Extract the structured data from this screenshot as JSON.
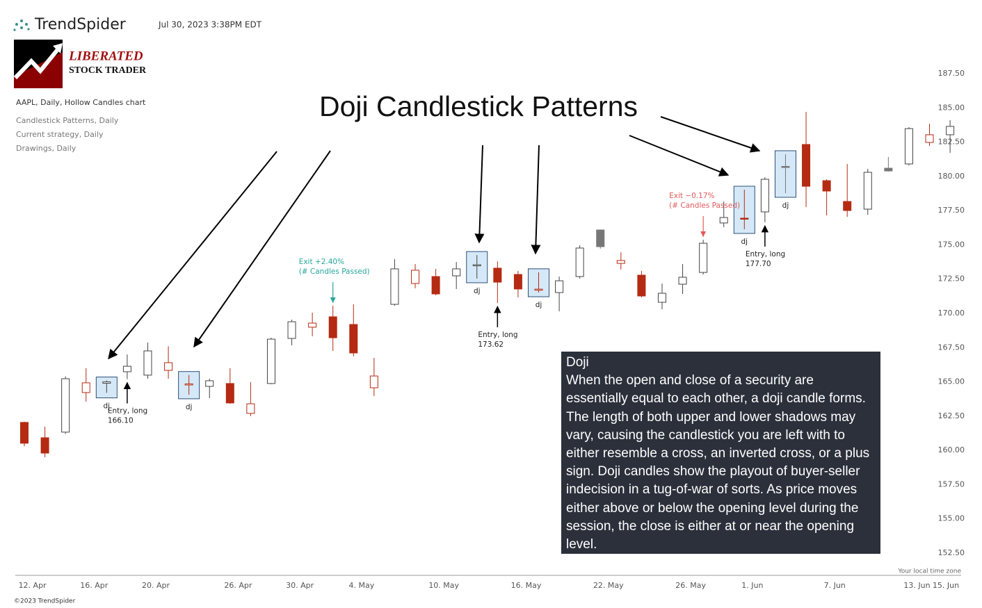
{
  "header": {
    "brand": "TrendSpider",
    "timestamp": "Jul 30, 2023 3:38PM EDT",
    "logo_line1": "LIBERATED",
    "logo_line2": "STOCK TRADER"
  },
  "legend": [
    "AAPL, Daily, Hollow Candles chart",
    "Candlestick Patterns, Daily",
    "Current strategy, Daily",
    "Drawings, Daily"
  ],
  "footer": {
    "copyright": "©2023 TrendSpider",
    "timezone": "Your local time zone"
  },
  "info_box": {
    "title": "Doji",
    "text": "When the open and close of a security are essentially equal to each other, a doji candle forms. The length of both upper and lower shadows may vary, causing the candlestick you are left with to either resemble a cross, an inverted cross, or a plus sign. Doji candles show the playout of buyer-seller indecision in a tug-of-war of sorts. As price moves either above or below the opening level during the session, the close is either at or near the opening level."
  },
  "chart_data": {
    "type": "candlestick",
    "title": "Doji Candlestick Patterns",
    "categories": [
      null,
      "12. Apr",
      null,
      null,
      "16. Apr",
      null,
      null,
      "20. Apr",
      null,
      null,
      null,
      "26. Apr",
      null,
      null,
      "30. Apr",
      null,
      null,
      "4. May",
      null,
      null,
      null,
      "10. May",
      null,
      null,
      null,
      "16. May",
      null,
      null,
      null,
      "22. May",
      null,
      null,
      null,
      "26. May",
      null,
      null,
      "1. Jun",
      null,
      null,
      null,
      "7. Jun",
      null,
      null,
      null,
      "13. Jun",
      null,
      "15. Jun"
    ],
    "open": [
      162.04,
      160.92,
      161.33,
      164.22,
      164.9,
      165.74,
      165.49,
      165.84,
      164.8,
      164.67,
      164.88,
      162.7,
      164.88,
      168.17,
      168.99,
      169.75,
      169.19,
      164.57,
      170.66,
      172.18,
      172.69,
      172.74,
      173.5,
      173.3,
      172.84,
      171.7,
      171.52,
      172.69,
      176.09,
      173.65,
      172.79,
      170.81,
      172.13,
      172.99,
      176.6,
      176.95,
      177.41,
      180.73,
      182.33,
      179.69,
      178.17,
      177.61,
      180.6,
      180.91,
      182.48,
      183.04,
      null
    ],
    "high": [
      162.1,
      161.73,
      165.4,
      166.0,
      165.1,
      167.0,
      167.87,
      167.6,
      165.5,
      165.23,
      166.0,
      164.98,
      168.22,
      169.54,
      170.05,
      170.56,
      170.66,
      166.75,
      173.96,
      173.6,
      173.25,
      173.75,
      174.26,
      173.8,
      173.1,
      173.0,
      172.69,
      174.97,
      176.09,
      174.46,
      173.1,
      172.18,
      173.6,
      175.38,
      178.17,
      179.03,
      179.94,
      181.62,
      184.71,
      179.79,
      180.91,
      180.55,
      181.42,
      183.6,
      183.85,
      184.1,
      null
    ],
    "low": [
      160.3,
      159.5,
      161.2,
      163.56,
      164.2,
      165.2,
      165.23,
      165.23,
      164.07,
      163.81,
      163.4,
      162.5,
      164.83,
      167.67,
      168.33,
      167.26,
      166.86,
      163.96,
      170.56,
      171.83,
      171.32,
      171.78,
      172.54,
      170.76,
      171.17,
      171.52,
      170.15,
      172.54,
      174.72,
      173.2,
      171.17,
      170.3,
      171.42,
      172.84,
      176.29,
      176.14,
      176.65,
      178.78,
      177.76,
      177.15,
      177.05,
      177.2,
      180.35,
      180.8,
      182.22,
      181.72,
      null
    ],
    "close": [
      160.52,
      159.8,
      165.23,
      164.93,
      165.0,
      166.14,
      167.26,
      166.4,
      164.85,
      165.08,
      163.46,
      163.4,
      168.12,
      169.39,
      169.29,
      168.22,
      167.11,
      165.43,
      173.25,
      173.15,
      171.42,
      173.25,
      173.55,
      172.28,
      171.78,
      171.77,
      172.38,
      174.77,
      174.87,
      173.86,
      171.27,
      171.47,
      172.64,
      175.12,
      177.0,
      176.9,
      179.79,
      180.7,
      179.28,
      178.93,
      177.51,
      180.3,
      180.4,
      183.49,
      183.04,
      183.65,
      null
    ],
    "up_color": "#444444",
    "down_color": "#b52a12",
    "flat_fill": "#777777",
    "ylim": [
      150.9,
      189.8
    ],
    "yticks": [
      {
        "value": 152.5,
        "label": "152.50"
      },
      {
        "value": 155,
        "label": "155.00"
      },
      {
        "value": 157.5,
        "label": "157.50"
      },
      {
        "value": 160,
        "label": "160.00"
      },
      {
        "value": 162.5,
        "label": "162.50"
      },
      {
        "value": 165,
        "label": "165.00"
      },
      {
        "value": 167.5,
        "label": "167.50"
      },
      {
        "value": 170,
        "label": "170.00"
      },
      {
        "value": 172.5,
        "label": "172.50"
      },
      {
        "value": 175,
        "label": "175.00"
      },
      {
        "value": 177.5,
        "label": "177.50"
      },
      {
        "value": 180,
        "label": "180.00"
      },
      {
        "value": 182.5,
        "label": "182.50"
      },
      {
        "value": 185,
        "label": "185.00"
      },
      {
        "value": 187.5,
        "label": "187.50"
      }
    ],
    "grid": false,
    "pattern_label": "dj",
    "entries": [
      {
        "text": "Entry, long",
        "price": "166.10"
      },
      {
        "text": "Entry, long",
        "price": "173.62"
      },
      {
        "text": "Entry, long",
        "price": "177.70"
      }
    ],
    "exits": [
      {
        "text": "Exit +2.40%",
        "note": "(# Candles Passed)",
        "color": "#26a69a"
      },
      {
        "text": "Exit −0.17%",
        "note": "(# Candles Passed)",
        "color": "#e05a5a"
      }
    ]
  }
}
